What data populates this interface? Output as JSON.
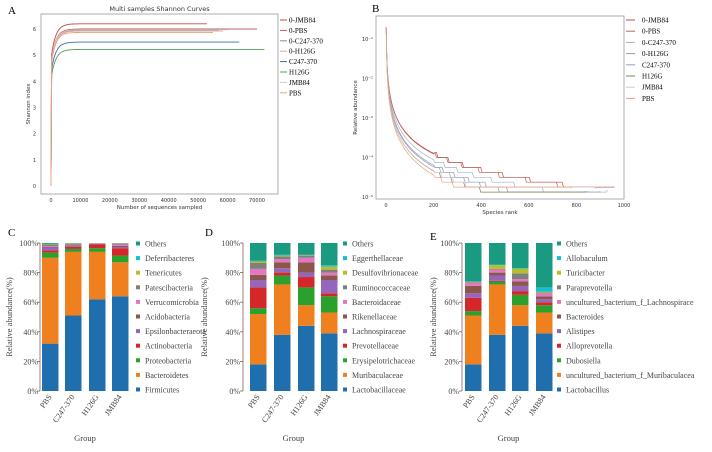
{
  "panel_labels": [
    "A",
    "B",
    "C",
    "D",
    "E"
  ],
  "chart_data": [
    {
      "type": "line",
      "panel": "A",
      "title": "Multi samples Shannon Curves",
      "xlabel": "Number of sequences sampled",
      "ylabel": "Shannon index",
      "xlim": [
        0,
        72500
      ],
      "ylim": [
        0,
        6.5
      ],
      "xticks": [
        0,
        10000,
        20000,
        30000,
        40000,
        50000,
        60000,
        70000
      ],
      "yticks": [
        0,
        1,
        2,
        3,
        4,
        5,
        6
      ],
      "legend": "right-outside",
      "series": [
        {
          "name": "0-JMB84",
          "color": "#c44a44",
          "plateau": 6.2,
          "max_x": 53000
        },
        {
          "name": "0-PBS",
          "color": "#b7665c",
          "plateau": 6.0,
          "max_x": 70000
        },
        {
          "name": "0-C247-370",
          "color": "#8f8797",
          "plateau": 5.95,
          "max_x": 57000
        },
        {
          "name": "0-H126G",
          "color": "#e7a6a6",
          "plateau": 5.92,
          "max_x": 58500
        },
        {
          "name": "C247-370",
          "color": "#3e6fa3",
          "plateau": 5.5,
          "max_x": 64000
        },
        {
          "name": "H126G",
          "color": "#4e9e57",
          "plateau": 5.22,
          "max_x": 72500
        },
        {
          "name": "JMB84",
          "color": "#cfcfcf",
          "plateau": 5.97,
          "max_x": 60000
        },
        {
          "name": "PBS",
          "color": "#ef9e76",
          "plateau": 5.87,
          "max_x": 55000
        }
      ]
    },
    {
      "type": "line",
      "panel": "B",
      "xlabel": "Species rank",
      "ylabel": "Relative abundance",
      "xlim": [
        0,
        1000
      ],
      "ylim": [
        1e-05,
        0.3
      ],
      "yscale": "log",
      "xticks": [
        0,
        200,
        400,
        600,
        800,
        1000
      ],
      "yticks": [
        "10⁻¹",
        "10⁻²",
        "10⁻³",
        "10⁻⁴",
        "10⁻⁵"
      ],
      "legend": "right-outside",
      "series": [
        {
          "name": "0-JMB84",
          "color": "#c44a44",
          "max_rank": 870,
          "min_abundance": 1.8e-05
        },
        {
          "name": "0-PBS",
          "color": "#b7665c",
          "max_rank": 960,
          "min_abundance": 1.8e-05
        },
        {
          "name": "0-C247-370",
          "color": "#9fb4c9",
          "max_rank": 930,
          "min_abundance": 1.5e-05
        },
        {
          "name": "0-H126G",
          "color": "#a78fae",
          "max_rank": 850,
          "min_abundance": 1.4e-05
        },
        {
          "name": "C247-370",
          "color": "#8da3c4",
          "max_rank": 900,
          "min_abundance": 1.4e-05
        },
        {
          "name": "H126G",
          "color": "#6f8a5a",
          "max_rank": 840,
          "min_abundance": 1.4e-05
        },
        {
          "name": "JMB84",
          "color": "#d8c6d0",
          "max_rank": 880,
          "min_abundance": 1.6e-05
        },
        {
          "name": "PBS",
          "color": "#ef9e76",
          "max_rank": 780,
          "min_abundance": 1.7e-05
        }
      ]
    },
    {
      "type": "bar",
      "stacked": true,
      "panel": "C",
      "xlabel": "Group",
      "ylabel": "Relative abundance(%)",
      "ylim": [
        0,
        100
      ],
      "yticks": [
        "0%",
        "20%",
        "40%",
        "60%",
        "80%",
        "100%"
      ],
      "categories": [
        "PBS",
        "C247-370",
        "H126G",
        "JMB84"
      ],
      "legend": "right",
      "series": [
        {
          "name": "Firmicutes",
          "color": "#1f6fae",
          "values": [
            32,
            51,
            62,
            64
          ]
        },
        {
          "name": "Bacteroidetes",
          "color": "#f0801e",
          "values": [
            58,
            43,
            32,
            23
          ]
        },
        {
          "name": "Proteobacteria",
          "color": "#2ca02c",
          "values": [
            3.5,
            2,
            2.5,
            4.5
          ]
        },
        {
          "name": "Actinobacteria",
          "color": "#d62728",
          "values": [
            1.5,
            1.5,
            2.5,
            5
          ]
        },
        {
          "name": "Epsilonbacteraeota",
          "color": "#9467bd",
          "values": [
            2,
            0.5,
            0.3,
            0.8
          ]
        },
        {
          "name": "Acidobacteria",
          "color": "#8c564b",
          "values": [
            0.5,
            0.5,
            0.2,
            0.7
          ]
        },
        {
          "name": "Verrucomicrobia",
          "color": "#e377c2",
          "values": [
            0.5,
            0.3,
            0.2,
            1
          ]
        },
        {
          "name": "Patescibacteria",
          "color": "#7f7f7f",
          "values": [
            1,
            0.7,
            0.1,
            0.5
          ]
        },
        {
          "name": "Tenericutes",
          "color": "#bcbd22",
          "values": [
            0.3,
            0.2,
            0.1,
            0.2
          ]
        },
        {
          "name": "Deferribacteres",
          "color": "#17becf",
          "values": [
            0.2,
            0.1,
            0.1,
            0.1
          ]
        },
        {
          "name": "Others",
          "color": "#1a9a80",
          "values": [
            0.5,
            0.2,
            0.0,
            0.2
          ]
        }
      ]
    },
    {
      "type": "bar",
      "stacked": true,
      "panel": "D",
      "xlabel": "Group",
      "ylabel": "Relative abundance(%)",
      "ylim": [
        0,
        100
      ],
      "yticks": [
        "0%",
        "20%",
        "40%",
        "60%",
        "80%",
        "100%"
      ],
      "categories": [
        "PBS",
        "C247-370",
        "H126G",
        "JMB84"
      ],
      "legend": "right",
      "series": [
        {
          "name": "Lactobacillaceae",
          "color": "#1f6fae",
          "values": [
            18,
            38,
            44,
            39
          ]
        },
        {
          "name": "Muribaculaceae",
          "color": "#f0801e",
          "values": [
            34,
            34,
            14,
            14
          ]
        },
        {
          "name": "Erysipelotrichaceae",
          "color": "#2ca02c",
          "values": [
            4,
            6,
            12,
            11
          ]
        },
        {
          "name": "Prevotellaceae",
          "color": "#d62728",
          "values": [
            14,
            2,
            7,
            2
          ]
        },
        {
          "name": "Lachnospiraceae",
          "color": "#9467bd",
          "values": [
            5,
            3,
            3,
            9
          ]
        },
        {
          "name": "Rikenellaceae",
          "color": "#8c564b",
          "values": [
            3.5,
            4,
            7,
            3
          ]
        },
        {
          "name": "Bacteroidaceae",
          "color": "#e377c2",
          "values": [
            4,
            2,
            3,
            2
          ]
        },
        {
          "name": "Ruminococcaceae",
          "color": "#7f7f7f",
          "values": [
            4,
            2,
            1.5,
            2
          ]
        },
        {
          "name": "Desulfovibrionaceae",
          "color": "#bcbd22",
          "values": [
            1,
            0.5,
            0.3,
            2
          ]
        },
        {
          "name": "Eggerthellaceae",
          "color": "#17becf",
          "values": [
            0.5,
            0.5,
            0.2,
            1
          ]
        },
        {
          "name": "Others",
          "color": "#1a9a80",
          "values": [
            11,
            8,
            8,
            15
          ]
        }
      ]
    },
    {
      "type": "bar",
      "stacked": true,
      "panel": "E",
      "xlabel": "Group",
      "ylabel": "Relative abundance(%)",
      "ylim": [
        0,
        100
      ],
      "yticks": [
        "0%",
        "20%",
        "40%",
        "60%",
        "80%",
        "100%"
      ],
      "categories": [
        "PBS",
        "C247-370",
        "H126G",
        "JMB84"
      ],
      "legend": "right",
      "series": [
        {
          "name": "Lactobacillus",
          "color": "#1f6fae",
          "values": [
            18,
            38,
            44,
            39
          ]
        },
        {
          "name": "uncultured_bacterium_f_Muribaculacea",
          "color": "#f0801e",
          "values": [
            33,
            34,
            14,
            14
          ]
        },
        {
          "name": "Dubosiella",
          "color": "#2ca02c",
          "values": [
            3,
            2,
            7,
            5
          ]
        },
        {
          "name": "Alloprevotella",
          "color": "#d62728",
          "values": [
            9,
            0.5,
            2.5,
            2
          ]
        },
        {
          "name": "Alistipes",
          "color": "#9467bd",
          "values": [
            3,
            3.5,
            3.5,
            2
          ]
        },
        {
          "name": "Bacteroides",
          "color": "#8c564b",
          "values": [
            5,
            2,
            3,
            2
          ]
        },
        {
          "name": "uncultured_bacterium_f_Lachnospirace",
          "color": "#e377c2",
          "values": [
            2,
            2,
            1.5,
            2
          ]
        },
        {
          "name": "Paraprevotella",
          "color": "#7f7f7f",
          "values": [
            0.5,
            0.5,
            4,
            0.5
          ]
        },
        {
          "name": "Turicibacter",
          "color": "#bcbd22",
          "values": [
            0.3,
            2.5,
            3,
            0.5
          ]
        },
        {
          "name": "Allobaculum",
          "color": "#17becf",
          "values": [
            0.2,
            0.5,
            0.5,
            3
          ]
        },
        {
          "name": "Others",
          "color": "#1a9a80",
          "values": [
            26,
            14.5,
            17,
            30
          ]
        }
      ]
    }
  ]
}
